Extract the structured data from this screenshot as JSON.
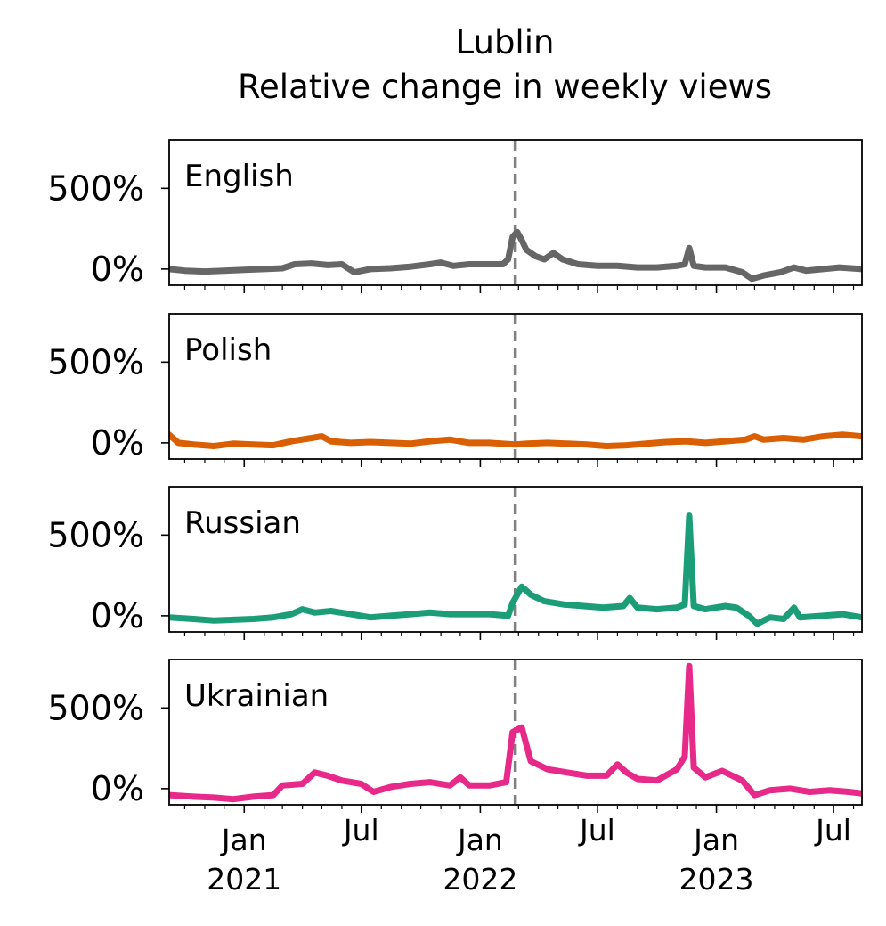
{
  "chart_data": {
    "type": "line",
    "title": [
      "Lublin",
      "Relative change in weekly views"
    ],
    "x_start": "2020-09-07",
    "x_end": "2023-08-14",
    "xlim": [
      "2020-09-07",
      "2023-08-14"
    ],
    "ylim": [
      -100,
      800
    ],
    "yticks": [
      0,
      500
    ],
    "ytick_labels": [
      "0%",
      "500%"
    ],
    "event_date": "2022-02-24",
    "x_ticks_major": [
      {
        "date": "2021-01-01",
        "lines": [
          "Jan",
          "2021"
        ]
      },
      {
        "date": "2021-07-01",
        "lines": [
          "Jul",
          ""
        ]
      },
      {
        "date": "2022-01-01",
        "lines": [
          "Jan",
          "2022"
        ]
      },
      {
        "date": "2022-07-01",
        "lines": [
          "Jul",
          ""
        ]
      },
      {
        "date": "2023-01-01",
        "lines": [
          "Jan",
          "2023"
        ]
      },
      {
        "date": "2023-07-01",
        "lines": [
          "Jul",
          ""
        ]
      }
    ],
    "grid": false,
    "series": [
      {
        "name": "English",
        "color": "#666666",
        "points": [
          [
            "2020-09-07",
            0
          ],
          [
            "2020-10-01",
            -10
          ],
          [
            "2020-11-01",
            -15
          ],
          [
            "2020-12-01",
            -10
          ],
          [
            "2021-01-01",
            -5
          ],
          [
            "2021-02-01",
            0
          ],
          [
            "2021-03-01",
            5
          ],
          [
            "2021-03-20",
            30
          ],
          [
            "2021-04-15",
            35
          ],
          [
            "2021-05-10",
            25
          ],
          [
            "2021-06-01",
            30
          ],
          [
            "2021-06-20",
            -20
          ],
          [
            "2021-07-15",
            0
          ],
          [
            "2021-08-15",
            5
          ],
          [
            "2021-09-15",
            15
          ],
          [
            "2021-10-15",
            30
          ],
          [
            "2021-11-01",
            40
          ],
          [
            "2021-11-20",
            20
          ],
          [
            "2021-12-15",
            30
          ],
          [
            "2022-01-15",
            30
          ],
          [
            "2022-02-05",
            30
          ],
          [
            "2022-02-13",
            60
          ],
          [
            "2022-02-20",
            200
          ],
          [
            "2022-02-27",
            230
          ],
          [
            "2022-03-06",
            180
          ],
          [
            "2022-03-13",
            120
          ],
          [
            "2022-03-27",
            80
          ],
          [
            "2022-04-10",
            60
          ],
          [
            "2022-04-24",
            100
          ],
          [
            "2022-05-08",
            60
          ],
          [
            "2022-06-01",
            30
          ],
          [
            "2022-07-01",
            20
          ],
          [
            "2022-08-01",
            20
          ],
          [
            "2022-09-01",
            10
          ],
          [
            "2022-10-01",
            10
          ],
          [
            "2022-11-01",
            20
          ],
          [
            "2022-11-13",
            30
          ],
          [
            "2022-11-20",
            130
          ],
          [
            "2022-11-27",
            20
          ],
          [
            "2022-12-15",
            10
          ],
          [
            "2023-01-15",
            10
          ],
          [
            "2023-02-10",
            -20
          ],
          [
            "2023-02-25",
            -60
          ],
          [
            "2023-03-15",
            -40
          ],
          [
            "2023-04-10",
            -20
          ],
          [
            "2023-05-01",
            10
          ],
          [
            "2023-05-20",
            -10
          ],
          [
            "2023-06-15",
            0
          ],
          [
            "2023-07-10",
            10
          ],
          [
            "2023-08-14",
            0
          ]
        ]
      },
      {
        "name": "Polish",
        "color": "#d95f02",
        "points": [
          [
            "2020-09-07",
            50
          ],
          [
            "2020-09-21",
            0
          ],
          [
            "2020-10-15",
            -10
          ],
          [
            "2020-11-15",
            -20
          ],
          [
            "2020-12-15",
            -5
          ],
          [
            "2021-01-15",
            -10
          ],
          [
            "2021-02-15",
            -15
          ],
          [
            "2021-03-15",
            10
          ],
          [
            "2021-04-15",
            30
          ],
          [
            "2021-05-01",
            40
          ],
          [
            "2021-05-15",
            10
          ],
          [
            "2021-06-15",
            0
          ],
          [
            "2021-07-15",
            5
          ],
          [
            "2021-08-15",
            0
          ],
          [
            "2021-09-15",
            -5
          ],
          [
            "2021-10-15",
            10
          ],
          [
            "2021-11-15",
            20
          ],
          [
            "2021-12-15",
            0
          ],
          [
            "2022-01-15",
            0
          ],
          [
            "2022-02-24",
            -10
          ],
          [
            "2022-03-15",
            -5
          ],
          [
            "2022-04-15",
            0
          ],
          [
            "2022-05-15",
            -5
          ],
          [
            "2022-06-15",
            -10
          ],
          [
            "2022-07-15",
            -20
          ],
          [
            "2022-08-15",
            -15
          ],
          [
            "2022-09-15",
            -5
          ],
          [
            "2022-10-15",
            5
          ],
          [
            "2022-11-15",
            10
          ],
          [
            "2022-12-15",
            0
          ],
          [
            "2023-01-15",
            10
          ],
          [
            "2023-02-15",
            20
          ],
          [
            "2023-03-01",
            40
          ],
          [
            "2023-03-15",
            20
          ],
          [
            "2023-04-15",
            30
          ],
          [
            "2023-05-15",
            20
          ],
          [
            "2023-06-15",
            40
          ],
          [
            "2023-07-15",
            50
          ],
          [
            "2023-08-14",
            40
          ]
        ]
      },
      {
        "name": "Russian",
        "color": "#1b9e77",
        "points": [
          [
            "2020-09-07",
            -10
          ],
          [
            "2020-10-15",
            -20
          ],
          [
            "2020-11-15",
            -30
          ],
          [
            "2020-12-15",
            -25
          ],
          [
            "2021-01-15",
            -20
          ],
          [
            "2021-02-15",
            -10
          ],
          [
            "2021-03-15",
            10
          ],
          [
            "2021-04-01",
            40
          ],
          [
            "2021-04-20",
            20
          ],
          [
            "2021-05-15",
            30
          ],
          [
            "2021-06-15",
            10
          ],
          [
            "2021-07-15",
            -10
          ],
          [
            "2021-08-15",
            0
          ],
          [
            "2021-09-15",
            10
          ],
          [
            "2021-10-15",
            20
          ],
          [
            "2021-11-15",
            10
          ],
          [
            "2021-12-15",
            10
          ],
          [
            "2022-01-15",
            10
          ],
          [
            "2022-02-13",
            0
          ],
          [
            "2022-02-20",
            80
          ],
          [
            "2022-03-06",
            180
          ],
          [
            "2022-03-20",
            130
          ],
          [
            "2022-04-10",
            90
          ],
          [
            "2022-05-10",
            70
          ],
          [
            "2022-06-10",
            60
          ],
          [
            "2022-07-10",
            50
          ],
          [
            "2022-08-10",
            60
          ],
          [
            "2022-08-20",
            110
          ],
          [
            "2022-09-01",
            50
          ],
          [
            "2022-10-01",
            40
          ],
          [
            "2022-11-01",
            50
          ],
          [
            "2022-11-13",
            70
          ],
          [
            "2022-11-20",
            620
          ],
          [
            "2022-11-27",
            60
          ],
          [
            "2022-12-15",
            40
          ],
          [
            "2023-01-15",
            60
          ],
          [
            "2023-02-01",
            50
          ],
          [
            "2023-02-20",
            0
          ],
          [
            "2023-03-05",
            -50
          ],
          [
            "2023-03-25",
            -10
          ],
          [
            "2023-04-15",
            -20
          ],
          [
            "2023-05-01",
            50
          ],
          [
            "2023-05-10",
            -10
          ],
          [
            "2023-06-15",
            0
          ],
          [
            "2023-07-15",
            10
          ],
          [
            "2023-08-14",
            -10
          ]
        ]
      },
      {
        "name": "Ukrainian",
        "color": "#e7298a",
        "points": [
          [
            "2020-09-07",
            -40
          ],
          [
            "2020-10-15",
            -50
          ],
          [
            "2020-11-15",
            -55
          ],
          [
            "2020-12-15",
            -65
          ],
          [
            "2021-01-15",
            -50
          ],
          [
            "2021-02-15",
            -40
          ],
          [
            "2021-03-01",
            20
          ],
          [
            "2021-04-01",
            30
          ],
          [
            "2021-04-20",
            100
          ],
          [
            "2021-05-10",
            80
          ],
          [
            "2021-06-01",
            50
          ],
          [
            "2021-07-01",
            30
          ],
          [
            "2021-07-20",
            -20
          ],
          [
            "2021-08-15",
            10
          ],
          [
            "2021-09-15",
            30
          ],
          [
            "2021-10-15",
            40
          ],
          [
            "2021-11-15",
            20
          ],
          [
            "2021-12-01",
            70
          ],
          [
            "2021-12-15",
            20
          ],
          [
            "2022-01-15",
            20
          ],
          [
            "2022-02-10",
            40
          ],
          [
            "2022-02-20",
            350
          ],
          [
            "2022-03-06",
            380
          ],
          [
            "2022-03-20",
            170
          ],
          [
            "2022-04-15",
            120
          ],
          [
            "2022-05-15",
            100
          ],
          [
            "2022-06-15",
            80
          ],
          [
            "2022-07-15",
            80
          ],
          [
            "2022-08-01",
            150
          ],
          [
            "2022-08-15",
            100
          ],
          [
            "2022-09-01",
            60
          ],
          [
            "2022-10-01",
            50
          ],
          [
            "2022-11-01",
            120
          ],
          [
            "2022-11-13",
            200
          ],
          [
            "2022-11-20",
            760
          ],
          [
            "2022-11-27",
            130
          ],
          [
            "2022-12-15",
            70
          ],
          [
            "2023-01-10",
            110
          ],
          [
            "2023-02-10",
            50
          ],
          [
            "2023-03-01",
            -40
          ],
          [
            "2023-03-25",
            -10
          ],
          [
            "2023-04-25",
            0
          ],
          [
            "2023-05-25",
            -20
          ],
          [
            "2023-06-25",
            -10
          ],
          [
            "2023-07-25",
            -20
          ],
          [
            "2023-08-14",
            -30
          ]
        ]
      }
    ]
  }
}
